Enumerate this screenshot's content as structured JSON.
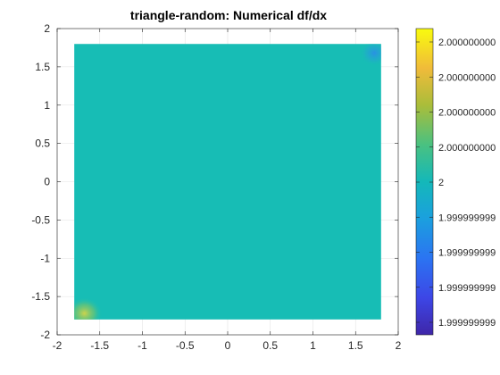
{
  "chart_data": {
    "type": "heatmap",
    "title": "triangle-random: Numerical df/dx",
    "xlabel": "",
    "ylabel": "",
    "xlim": [
      -2,
      2
    ],
    "ylim": [
      -2,
      2
    ],
    "x_ticks": [
      -2,
      -1.5,
      -1,
      -0.5,
      0,
      0.5,
      1,
      1.5,
      2
    ],
    "x_tick_labels": [
      "-2",
      "-1.5",
      "-1",
      "-0.5",
      "0",
      "0.5",
      "1",
      "1.5",
      "2"
    ],
    "y_ticks": [
      2,
      1.5,
      1,
      0.5,
      0,
      -0.5,
      -1,
      -1.5,
      -2
    ],
    "y_tick_labels": [
      "2",
      "1.5",
      "1",
      "0.5",
      "0",
      "-0.5",
      "-1",
      "-1.5",
      "-2"
    ],
    "grid": true,
    "data_extent": {
      "x": [
        -1.8,
        1.8
      ],
      "y": [
        -1.8,
        1.8
      ]
    },
    "field_value": 2,
    "field_color": "#17bdb5",
    "features": [
      {
        "x": -1.68,
        "y": -1.72,
        "color": "#c8d44e",
        "note": "lower-left corner slightly above 2"
      },
      {
        "x": 1.72,
        "y": 1.68,
        "color": "#2f9ce4",
        "note": "upper-right corner slightly below 2"
      }
    ],
    "colorbar": {
      "labels": [
        "2.000000000",
        "2.000000000",
        "2.000000000",
        "2.000000000",
        "2",
        "1.999999999",
        "1.999999999",
        "1.999999999",
        "1.999999999"
      ],
      "colors": {
        "top": "#f9fb0e",
        "upper": "#fbbc3c",
        "mid_upper": "#a6be38",
        "middle": "#1fb8a5",
        "mid_lower": "#32a6da",
        "lower": "#1e7ae3",
        "bottom": "#3e26a8"
      }
    }
  }
}
